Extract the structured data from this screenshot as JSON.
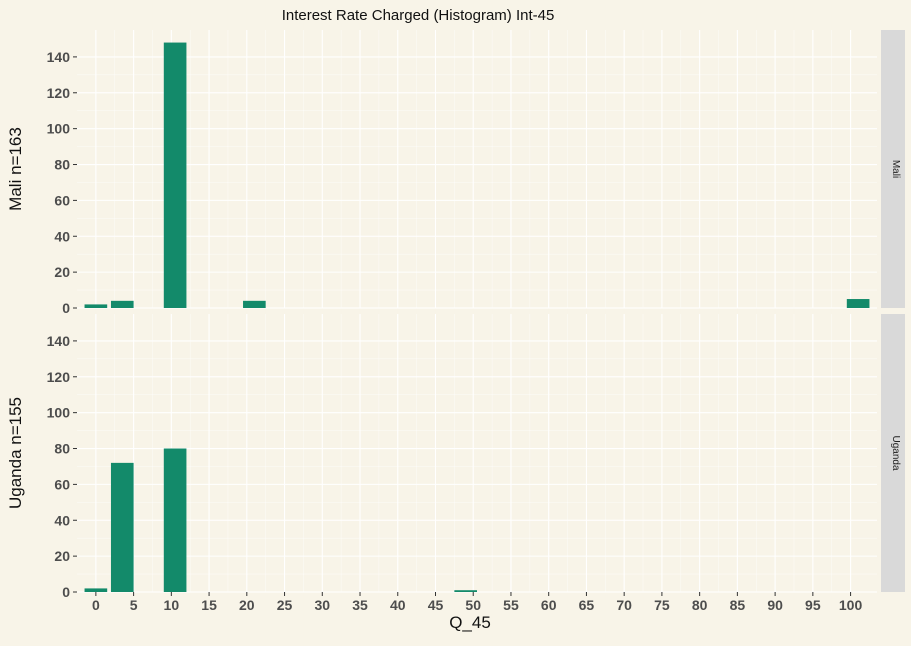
{
  "chart_data": {
    "type": "bar",
    "title": "Interest Rate Charged (Histogram) Int-45",
    "xlabel": "Q_45",
    "x_ticks": [
      0,
      5,
      10,
      15,
      20,
      25,
      30,
      35,
      40,
      45,
      50,
      55,
      60,
      65,
      70,
      75,
      80,
      85,
      90,
      95,
      100
    ],
    "xlim": [
      -2.5,
      103.5
    ],
    "ylim": [
      0,
      155
    ],
    "y_ticks": [
      0,
      20,
      40,
      60,
      80,
      100,
      120,
      140
    ],
    "grid": true,
    "bar_color": "#138A6A",
    "panels": [
      {
        "strip": "Mali",
        "ylabel": "Mali n=163",
        "bars": [
          {
            "x": 0,
            "value": 2
          },
          {
            "x": 3.5,
            "value": 4
          },
          {
            "x": 10.5,
            "value": 148
          },
          {
            "x": 21,
            "value": 4
          },
          {
            "x": 101,
            "value": 5
          }
        ]
      },
      {
        "strip": "Uganda",
        "ylabel": "Uganda n=155",
        "bars": [
          {
            "x": 0,
            "value": 2
          },
          {
            "x": 3.5,
            "value": 72
          },
          {
            "x": 10.5,
            "value": 80
          },
          {
            "x": 49,
            "value": 1
          }
        ]
      }
    ]
  }
}
